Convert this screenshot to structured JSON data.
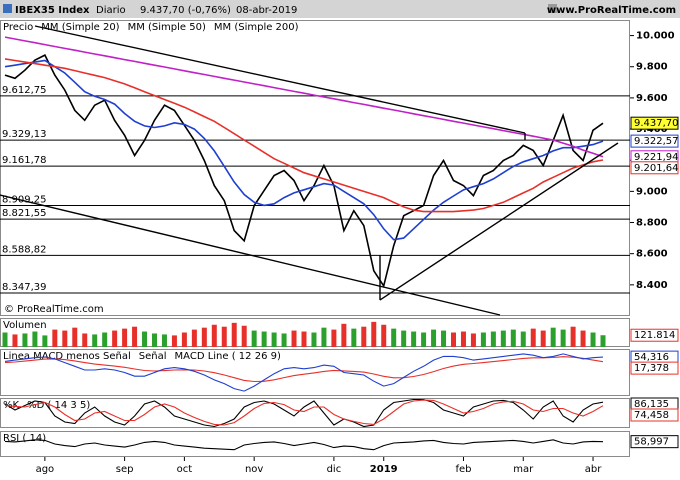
{
  "header": {
    "instrument": "IBEX35 Index",
    "period": "Diario",
    "quote": "9.437,70 (-0,76%)",
    "date": "08-abr-2019",
    "site": "www.ProRealTime.com",
    "copyright": "© ProRealTime.com"
  },
  "chart_data": [
    {
      "type": "line",
      "categories": [
        null,
        null,
        null,
        null,
        "ago",
        null,
        null,
        null,
        null,
        null,
        null,
        null,
        "sep",
        null,
        null,
        null,
        null,
        null,
        "oct",
        null,
        null,
        null,
        null,
        null,
        null,
        "nov",
        null,
        null,
        null,
        null,
        null,
        null,
        null,
        "dic",
        null,
        null,
        null,
        null,
        "2019",
        null,
        null,
        null,
        null,
        null,
        null,
        null,
        "feb",
        null,
        null,
        null,
        null,
        null,
        "mar",
        null,
        null,
        null,
        null,
        null,
        null,
        "abr",
        null
      ],
      "ylim": [
        8200,
        10100
      ],
      "yticks": [
        {
          "value": 8400,
          "label": "8.400"
        },
        {
          "value": 8600,
          "label": "8.600"
        },
        {
          "value": 8800,
          "label": "8.800"
        },
        {
          "value": 9000,
          "label": "9.000"
        },
        {
          "value": 9200,
          "label": "9.200"
        },
        {
          "value": 9400,
          "label": "9.400"
        },
        {
          "value": 9600,
          "label": "9.600"
        },
        {
          "value": 9800,
          "label": "9.800"
        },
        {
          "value": 10000,
          "label": "10.000"
        }
      ],
      "levels": [
        {
          "value": 9612.75,
          "label": "9.612,75"
        },
        {
          "value": 9329.13,
          "label": "9.329,13"
        },
        {
          "value": 9161.78,
          "label": "9.161,78"
        },
        {
          "value": 8909.25,
          "label": "8.909,25"
        },
        {
          "value": 8821.55,
          "label": "8.821,55"
        },
        {
          "value": 8588.82,
          "label": "8.588,82"
        },
        {
          "value": 8347.39,
          "label": "8.347,39"
        }
      ],
      "series": [
        {
          "name": "Precio",
          "color": "#000000",
          "last_label": "9.437,70",
          "values": [
            9746,
            9726,
            9778,
            9842,
            9875,
            9746,
            9650,
            9520,
            9456,
            9553,
            9585,
            9456,
            9360,
            9230,
            9327,
            9456,
            9553,
            9520,
            9424,
            9327,
            9198,
            9037,
            8940,
            8748,
            8683,
            8909,
            9005,
            9102,
            9134,
            9070,
            8940,
            9037,
            9166,
            9037,
            8748,
            8876,
            8780,
            8490,
            8393,
            8651,
            8844,
            8876,
            8909,
            9102,
            9198,
            9070,
            9037,
            8973,
            9102,
            9134,
            9198,
            9230,
            9295,
            9263,
            9166,
            9327,
            9488,
            9263,
            9198,
            9392,
            9437.7
          ]
        },
        {
          "name": "MM (Simple 20)",
          "color": "#1f3fd0",
          "last_label": "9.322,57",
          "values": [
            9800,
            9810,
            9820,
            9830,
            9840,
            9800,
            9760,
            9700,
            9640,
            9610,
            9590,
            9560,
            9500,
            9450,
            9420,
            9410,
            9420,
            9440,
            9430,
            9400,
            9340,
            9260,
            9160,
            9060,
            8980,
            8930,
            8910,
            8920,
            8960,
            8990,
            9010,
            9030,
            9050,
            9040,
            9000,
            8960,
            8920,
            8850,
            8760,
            8690,
            8700,
            8760,
            8820,
            8880,
            8930,
            8970,
            9010,
            9030,
            9050,
            9080,
            9120,
            9160,
            9190,
            9210,
            9230,
            9260,
            9280,
            9280,
            9290,
            9300,
            9322.57
          ]
        },
        {
          "name": "MM (Simple 50)",
          "color": "#e8302a",
          "last_label": "9.201,64",
          "values": [
            9850,
            9840,
            9830,
            9820,
            9810,
            9800,
            9790,
            9775,
            9760,
            9745,
            9730,
            9710,
            9690,
            9665,
            9640,
            9615,
            9590,
            9565,
            9540,
            9510,
            9480,
            9450,
            9410,
            9370,
            9330,
            9290,
            9250,
            9210,
            9180,
            9150,
            9120,
            9100,
            9080,
            9060,
            9040,
            9020,
            9000,
            8980,
            8960,
            8930,
            8900,
            8880,
            8870,
            8870,
            8870,
            8870,
            8875,
            8880,
            8890,
            8910,
            8930,
            8960,
            8990,
            9020,
            9060,
            9090,
            9120,
            9150,
            9170,
            9190,
            9201.64
          ]
        },
        {
          "name": "MM (Simple 200)",
          "color": "#c020c8",
          "last_label": "9.221,94",
          "values": [
            9990,
            9978,
            9966,
            9954,
            9942,
            9930,
            9918,
            9906,
            9894,
            9882,
            9870,
            9858,
            9846,
            9834,
            9822,
            9810,
            9798,
            9786,
            9774,
            9762,
            9750,
            9738,
            9726,
            9714,
            9702,
            9690,
            9678,
            9666,
            9654,
            9642,
            9630,
            9618,
            9606,
            9594,
            9582,
            9570,
            9558,
            9546,
            9534,
            9522,
            9510,
            9498,
            9486,
            9474,
            9462,
            9450,
            9438,
            9426,
            9414,
            9402,
            9390,
            9378,
            9366,
            9354,
            9342,
            9330,
            9310,
            9290,
            9265,
            9245,
            9221.94
          ]
        }
      ]
    },
    {
      "type": "bar",
      "name": "Volumen",
      "last_label": "121.814",
      "up_color": "#2ca02c",
      "down_color": "#e8302a",
      "ylim": [
        0,
        300000
      ],
      "values": [
        150000,
        130000,
        140000,
        160000,
        120000,
        180000,
        170000,
        200000,
        140000,
        130000,
        150000,
        170000,
        190000,
        210000,
        160000,
        140000,
        130000,
        120000,
        150000,
        180000,
        200000,
        230000,
        210000,
        250000,
        220000,
        170000,
        160000,
        150000,
        140000,
        170000,
        160000,
        150000,
        200000,
        180000,
        240000,
        190000,
        210000,
        260000,
        230000,
        190000,
        170000,
        160000,
        150000,
        180000,
        170000,
        150000,
        160000,
        140000,
        150000,
        160000,
        170000,
        180000,
        160000,
        190000,
        170000,
        200000,
        180000,
        210000,
        170000,
        150000,
        121814
      ]
    },
    {
      "type": "line",
      "histogram_name": "Linea MACD menos Señal",
      "histogram_color": "#2ca02c",
      "ylim": [
        -260,
        120
      ],
      "series": [
        {
          "name": "Señal",
          "color": "#e8302a",
          "last_label": "17,378",
          "values": [
            10,
            15,
            22,
            30,
            38,
            40,
            34,
            24,
            10,
            -2,
            -10,
            -18,
            -28,
            -42,
            -54,
            -58,
            -55,
            -50,
            -48,
            -50,
            -58,
            -72,
            -90,
            -112,
            -134,
            -143,
            -141,
            -129,
            -111,
            -95,
            -84,
            -73,
            -61,
            -53,
            -57,
            -61,
            -67,
            -82,
            -101,
            -113,
            -112,
            -102,
            -86,
            -63,
            -38,
            -18,
            -4,
            3,
            10,
            18,
            26,
            35,
            44,
            49,
            49,
            51,
            58,
            54,
            45,
            30,
            17.378
          ]
        },
        {
          "name": "MACD Line ( 12 26 9)",
          "color": "#1f3fd0",
          "last_label": "54,316",
          "values": [
            20,
            30,
            40,
            50,
            55,
            40,
            10,
            -20,
            -50,
            -50,
            -40,
            -50,
            -70,
            -100,
            -100,
            -70,
            -40,
            -30,
            -40,
            -60,
            -90,
            -130,
            -160,
            -200,
            -220,
            -180,
            -130,
            -80,
            -40,
            -30,
            -40,
            -30,
            -10,
            -20,
            -70,
            -80,
            -90,
            -140,
            -180,
            -160,
            -110,
            -60,
            -20,
            30,
            60,
            60,
            50,
            30,
            40,
            50,
            60,
            70,
            80,
            70,
            50,
            60,
            80,
            60,
            40,
            50,
            54.316
          ]
        }
      ]
    },
    {
      "type": "line",
      "ylim": [
        0,
        100
      ],
      "series": [
        {
          "name": "%K",
          "color": "#000000",
          "last_label": "86,135",
          "values": [
            80,
            60,
            75,
            90,
            85,
            40,
            20,
            15,
            50,
            70,
            40,
            20,
            10,
            40,
            80,
            90,
            70,
            40,
            30,
            20,
            10,
            5,
            15,
            30,
            70,
            85,
            90,
            80,
            60,
            40,
            70,
            90,
            50,
            10,
            30,
            20,
            5,
            10,
            60,
            85,
            90,
            95,
            95,
            85,
            60,
            50,
            40,
            70,
            80,
            90,
            92,
            85,
            60,
            30,
            70,
            90,
            40,
            20,
            60,
            80,
            86.135
          ]
        },
        {
          "name": "%D ( 14 3 5)",
          "color": "#e8302a",
          "last_label": "74,458",
          "values": [
            75,
            72,
            70,
            78,
            85,
            70,
            45,
            25,
            30,
            50,
            55,
            40,
            25,
            25,
            45,
            70,
            80,
            70,
            50,
            35,
            22,
            12,
            10,
            18,
            40,
            65,
            82,
            85,
            78,
            60,
            55,
            70,
            70,
            45,
            30,
            22,
            15,
            12,
            30,
            55,
            80,
            90,
            93,
            92,
            80,
            65,
            50,
            55,
            65,
            80,
            87,
            89,
            80,
            60,
            55,
            65,
            65,
            50,
            40,
            55,
            74.458
          ]
        }
      ]
    },
    {
      "type": "line",
      "ylim": [
        0,
        100
      ],
      "series": [
        {
          "name": "RSI ( 14)",
          "color": "#000000",
          "last_label": "58,997",
          "values": [
            60,
            58,
            62,
            66,
            64,
            50,
            44,
            40,
            50,
            54,
            46,
            42,
            38,
            46,
            56,
            60,
            56,
            46,
            42,
            38,
            34,
            32,
            30,
            28,
            46,
            52,
            56,
            58,
            52,
            44,
            50,
            56,
            48,
            36,
            42,
            40,
            32,
            28,
            44,
            54,
            56,
            58,
            62,
            64,
            56,
            52,
            50,
            56,
            58,
            60,
            62,
            64,
            60,
            54,
            60,
            66,
            54,
            50,
            58,
            60,
            58.997
          ]
        }
      ]
    }
  ]
}
